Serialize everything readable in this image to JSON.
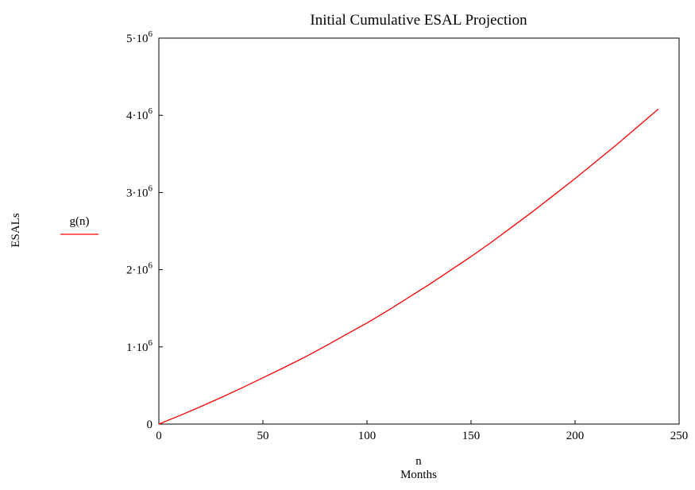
{
  "chart_data": {
    "type": "line",
    "title": "Initial Cumulative ESAL Projection",
    "ylabel": "ESALs",
    "xlabel_var": "n",
    "xlabel": "Months",
    "xlim": [
      0,
      250
    ],
    "ylim": [
      0,
      5000000
    ],
    "x_ticks": [
      {
        "value": 0,
        "label": "0"
      },
      {
        "value": 50,
        "label": "50"
      },
      {
        "value": 100,
        "label": "100"
      },
      {
        "value": 150,
        "label": "150"
      },
      {
        "value": 200,
        "label": "200"
      },
      {
        "value": 250,
        "label": "250"
      }
    ],
    "y_ticks": [
      {
        "value": 0,
        "mant": "0",
        "exp": ""
      },
      {
        "value": 1000000,
        "mant": "1·10",
        "exp": "6"
      },
      {
        "value": 2000000,
        "mant": "2·10",
        "exp": "6"
      },
      {
        "value": 3000000,
        "mant": "3·10",
        "exp": "6"
      },
      {
        "value": 4000000,
        "mant": "4·10",
        "exp": "6"
      },
      {
        "value": 5000000,
        "mant": "5·10",
        "exp": "6"
      }
    ],
    "grid": false,
    "legend_position": "left",
    "series": [
      {
        "name": "g(n)",
        "color": "#ff0000",
        "x": [
          0,
          10,
          20,
          30,
          40,
          50,
          60,
          70,
          80,
          90,
          100,
          110,
          120,
          130,
          140,
          150,
          160,
          170,
          180,
          190,
          200,
          210,
          220,
          230,
          240
        ],
        "y": [
          0,
          110000,
          225000,
          345000,
          470000,
          600000,
          730000,
          865000,
          1010000,
          1160000,
          1310000,
          1470000,
          1640000,
          1810000,
          1990000,
          2170000,
          2360000,
          2560000,
          2760000,
          2970000,
          3180000,
          3400000,
          3620000,
          3850000,
          4080000
        ]
      }
    ]
  }
}
